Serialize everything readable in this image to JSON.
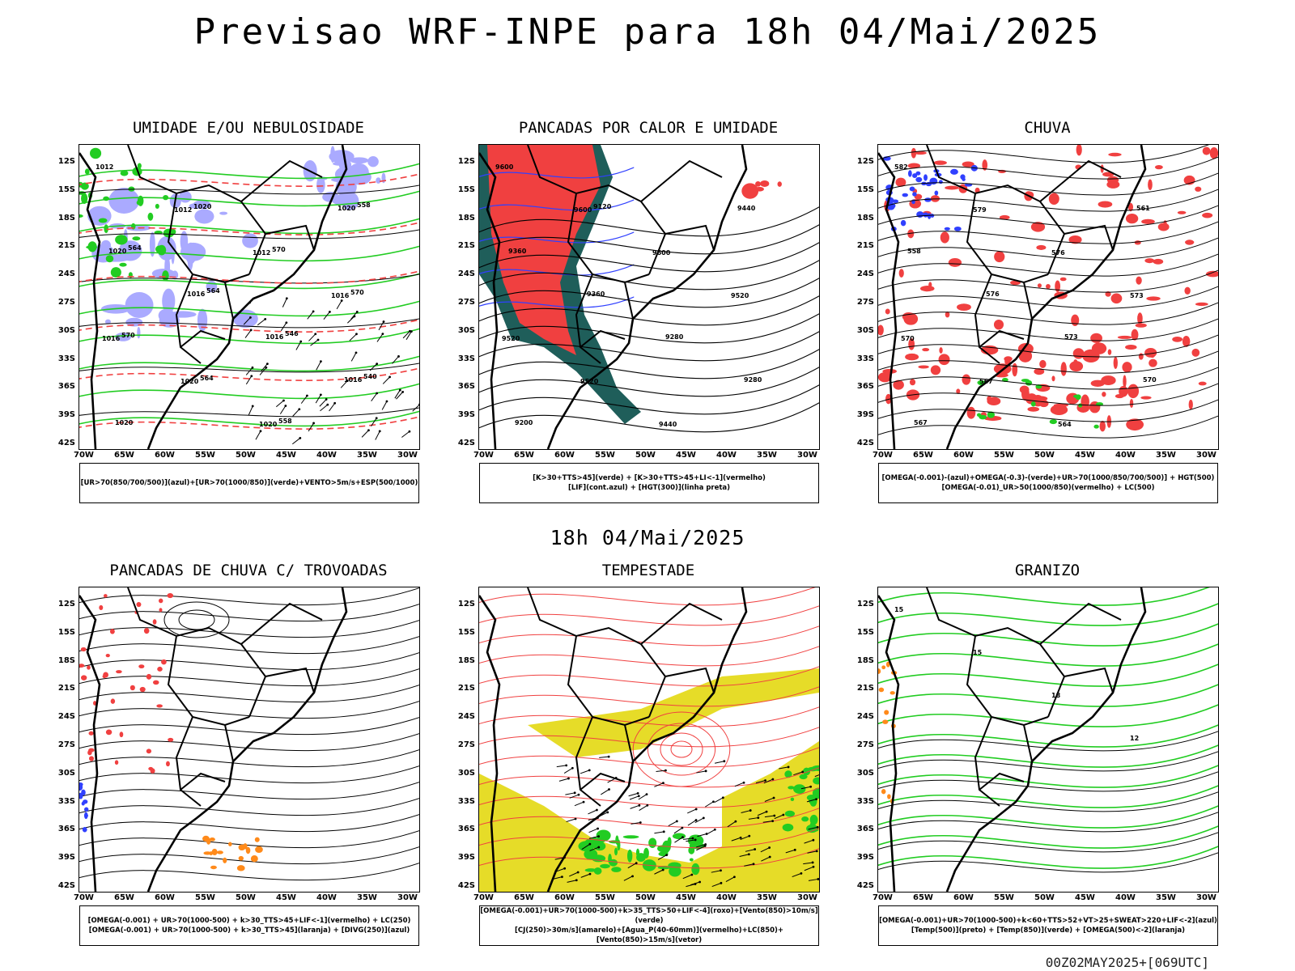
{
  "header": {
    "title": "Previsao WRF-INPE  para 18h 04/Mai/2025"
  },
  "mid_title": "18h 04/Mai/2025",
  "footer": "00Z02MAY2025+[069UTC]",
  "colors": {
    "blue": "#3040ff",
    "lightblue": "#aaaaff",
    "green": "#22cc22",
    "red": "#f04040",
    "darkgreen": "#1f5e5a",
    "orange": "#ff8a1a",
    "yellow": "#e6dc28"
  },
  "axes": {
    "x_ticks": [
      "70W",
      "65W",
      "60W",
      "55W",
      "50W",
      "45W",
      "40W",
      "35W",
      "30W"
    ],
    "y_ticks": [
      "12S",
      "15S",
      "18S",
      "21S",
      "24S",
      "27S",
      "30S",
      "33S",
      "36S",
      "39S",
      "42S"
    ]
  },
  "chart_data": [
    {
      "type": "map",
      "title": "UMIDADE E/OU NEBULOSIDADE",
      "legend": [
        "[UR>70(850/700/500)](azul)+[UR>70(1000/850)](verde)+VENTO>5m/s+ESP(500/1000)"
      ],
      "contour_labels": [
        "1012",
        "1012",
        "1012",
        "1016",
        "1016",
        "1020",
        "1020",
        "1020",
        "1020",
        "1016",
        "1016",
        "1016",
        "1020",
        "1020",
        "570",
        "570",
        "570",
        "564",
        "558",
        "558",
        "564",
        "564",
        "546",
        "540"
      ]
    },
    {
      "type": "map",
      "title": "PANCADAS POR CALOR E UMIDADE",
      "legend": [
        "[K>30+TTS>45](verde) + [K>30+TTS>45+LI<-1](vermelho)",
        "[LIF](cont.azul) + [HGT(300)](linha preta)"
      ],
      "contour_labels": [
        "9600",
        "9600",
        "9600",
        "9520",
        "9520",
        "9520",
        "9440",
        "9440",
        "9360",
        "9360",
        "9280",
        "9280",
        "9200",
        "9120"
      ]
    },
    {
      "type": "map",
      "title": "CHUVA",
      "legend": [
        "[OMEGA(-0.001)-(azul)+OMEGA(-0.3)-(verde)+UR>70(1000/850/700/500)] + HGT(500)",
        "[OMEGA(-0.01)_UR>50(1000/850)(vermelho) + LC(500)"
      ],
      "contour_labels": [
        "582",
        "579",
        "576",
        "573",
        "570",
        "567",
        "564",
        "561",
        "558",
        "576",
        "573",
        "570",
        "567"
      ]
    },
    {
      "type": "map",
      "title": "PANCADAS DE CHUVA C/ TROVOADAS",
      "legend": [
        "[OMEGA(-0.001) + UR>70(1000-500) + k>30_TTS>45+LIF<-1](vermelho) + LC(250)",
        "[OMEGA(-0.001) + UR>70(1000-500) + k>30_TTS>45](laranja) + [DIVG(250)](azul)"
      ]
    },
    {
      "type": "map",
      "title": "TEMPESTADE",
      "legend": [
        "[OMEGA(-0.001)+UR>70(1000-500)+k>35_TTS>50+LIF<-4](roxo)+[Vento(850)>10m/s](verde)",
        "[CJ(250)>30m/s](amarelo)+[Agua_P(40-60mm)](vermelho)+LC(850)+[Vento(850)>15m/s](vetor)"
      ]
    },
    {
      "type": "map",
      "title": "GRANIZO",
      "legend": [
        "[OMEGA(-0.001)+UR>70(1000-500)+k<60+TTS>52+VT>25+SWEAT>220+LIF<-2](azul)",
        "[Temp(500)](preto) + [Temp(850)](verde) + [OMEGA(500)<-2](laranja)"
      ],
      "contour_labels": [
        "15",
        "15",
        "18",
        "12"
      ]
    }
  ]
}
